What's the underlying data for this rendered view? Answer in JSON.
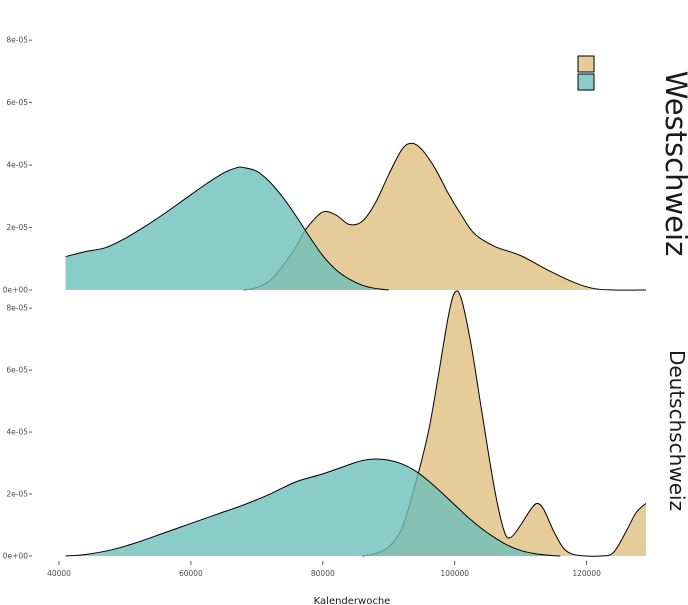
{
  "chart_data": {
    "type": "area",
    "xlabel": "Kalenderwoche",
    "x_ticks": [
      40000,
      60000,
      80000,
      100000,
      120000
    ],
    "x_tick_labels": [
      "40000",
      "60000",
      "80000",
      "100000",
      "120000"
    ],
    "xlim": [
      40000,
      129000
    ],
    "y_ticks": [
      0,
      2e-05,
      4e-05,
      6e-05,
      8e-05
    ],
    "y_tick_labels": [
      "0e+00",
      "2e-05",
      "4e-05",
      "6e-05",
      "8e-05"
    ],
    "ylim": [
      0,
      8.1e-05
    ],
    "legend_position": "top-right",
    "colors": {
      "tan": "#dfbf7f",
      "teal": "#6dbfb9"
    },
    "series": [
      {
        "color_key": "tan"
      },
      {
        "color_key": "teal"
      }
    ],
    "panels": [
      {
        "strip_label": "Westschweiz",
        "curves": [
          {
            "color_key": "tan",
            "x": [
              68000,
              70000,
              72000,
              74000,
              76000,
              77000,
              78000,
              80000,
              82000,
              84000,
              86000,
              88000,
              90000,
              92000,
              93500,
              95000,
              97000,
              99000,
              101000,
              103000,
              106000,
              110000,
              114000,
              118000,
              121000,
              124000,
              129000
            ],
            "y": [
              0,
              8e-07,
              3e-06,
              8e-06,
              1.4e-05,
              1.8e-05,
              2.1e-05,
              2.5e-05,
              2.4e-05,
              2.1e-05,
              2.2e-05,
              2.8e-05,
              3.7e-05,
              4.5e-05,
              4.7e-05,
              4.5e-05,
              3.9e-05,
              3.1e-05,
              2.4e-05,
              1.8e-05,
              1.4e-05,
              1.1e-05,
              6.5e-06,
              2.5e-06,
              5e-07,
              0,
              0
            ]
          },
          {
            "color_key": "teal",
            "x": [
              41000,
              44000,
              47000,
              50000,
              53000,
              56000,
              59000,
              62000,
              65000,
              67000,
              68000,
              70000,
              72000,
              74000,
              76000,
              78000,
              80000,
              82000,
              84000,
              86000,
              88000,
              90000
            ],
            "y": [
              1.07e-05,
              1.23e-05,
              1.35e-05,
              1.65e-05,
              2.03e-05,
              2.45e-05,
              2.9e-05,
              3.35e-05,
              3.75e-05,
              3.92e-05,
              3.92e-05,
              3.8e-05,
              3.45e-05,
              2.95e-05,
              2.35e-05,
              1.7e-05,
              1.1e-05,
              6.5e-06,
              3.5e-06,
              1.5e-06,
              5e-07,
              0
            ]
          }
        ]
      },
      {
        "strip_label": "Deutschschweiz",
        "curves": [
          {
            "color_key": "tan",
            "x": [
              86000,
              88000,
              90000,
              92000,
              94000,
              96000,
              97500,
              99000,
              100000,
              101000,
              102500,
              104000,
              106000,
              107500,
              108500,
              110000,
              111500,
              112500,
              113500,
              115000,
              116500,
              118000,
              120000,
              122000,
              124000,
              126000,
              127500,
              129000
            ],
            "y": [
              0,
              8e-07,
              3e-06,
              9e-06,
              2.3e-05,
              4e-05,
              5.8e-05,
              7.7e-05,
              8.5e-05,
              8.3e-05,
              6.8e-05,
              4.8e-05,
              2.2e-05,
              8e-06,
              6e-06,
              1e-05,
              1.5e-05,
              1.7e-05,
              1.5e-05,
              8e-06,
              2.5e-06,
              5e-07,
              0,
              0,
              1e-06,
              8e-06,
              1.4e-05,
              1.7e-05
            ]
          },
          {
            "color_key": "teal",
            "x": [
              41000,
              44000,
              48000,
              52000,
              56000,
              60000,
              64000,
              68000,
              72000,
              76000,
              80000,
              84000,
              86000,
              88000,
              90000,
              92000,
              94000,
              96000,
              98000,
              100000,
              102000,
              104000,
              106000,
              108000,
              110000,
              112000,
              114000,
              116000
            ],
            "y": [
              0,
              5e-07,
              2e-06,
              4.5e-06,
              7.5e-06,
              1.05e-05,
              1.35e-05,
              1.65e-05,
              2e-05,
              2.4e-05,
              2.65e-05,
              2.95e-05,
              3.08e-05,
              3.13e-05,
              3.09e-05,
              2.97e-05,
              2.75e-05,
              2.43e-05,
              2.05e-05,
              1.65e-05,
              1.25e-05,
              9e-06,
              6e-06,
              3.5e-06,
              1.8e-06,
              8e-07,
              3e-07,
              0
            ]
          }
        ]
      }
    ]
  }
}
